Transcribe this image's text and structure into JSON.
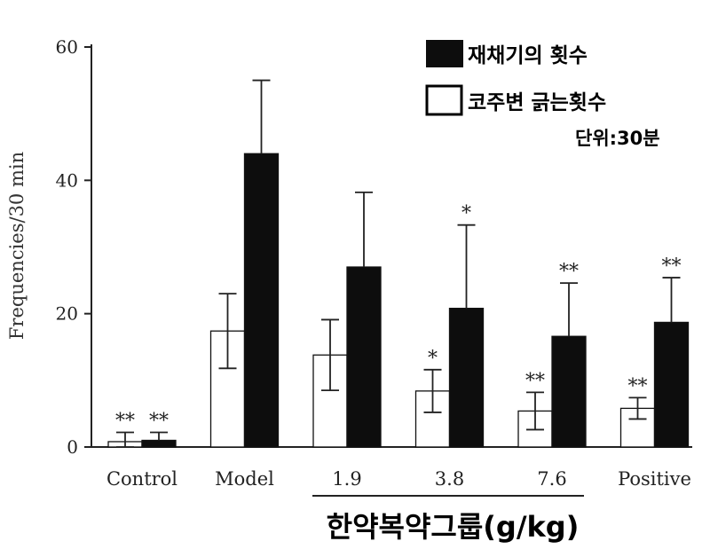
{
  "chart_data": {
    "type": "bar",
    "ylabel": "Frequencies/30 min",
    "xlabel": "",
    "ylim": [
      0,
      60
    ],
    "yticks": [
      0,
      20,
      40,
      60
    ],
    "categories": [
      "Control",
      "Model",
      "1.9",
      "3.8",
      "7.6",
      "Positive"
    ],
    "group_label": "한약복약그룹(g/kg)",
    "unit_note": "단위:30분",
    "legend_position": "top-right",
    "series": [
      {
        "name": "코주변 긁는횟수",
        "fill": "#ffffff",
        "values": [
          0.8,
          17.4,
          13.8,
          8.4,
          5.4,
          5.8
        ],
        "errors": [
          1.4,
          5.6,
          5.3,
          3.2,
          2.8,
          1.6
        ],
        "annotations": [
          "**",
          "",
          "",
          "*",
          "**",
          "**"
        ]
      },
      {
        "name": "재채기의 횟수",
        "fill": "#0d0d0d",
        "values": [
          1.0,
          44.0,
          27.0,
          20.8,
          16.6,
          18.7
        ],
        "errors": [
          1.2,
          11.0,
          11.2,
          12.5,
          8.0,
          6.7
        ],
        "annotations": [
          "**",
          "",
          "",
          "*",
          "**",
          "**"
        ]
      }
    ]
  }
}
